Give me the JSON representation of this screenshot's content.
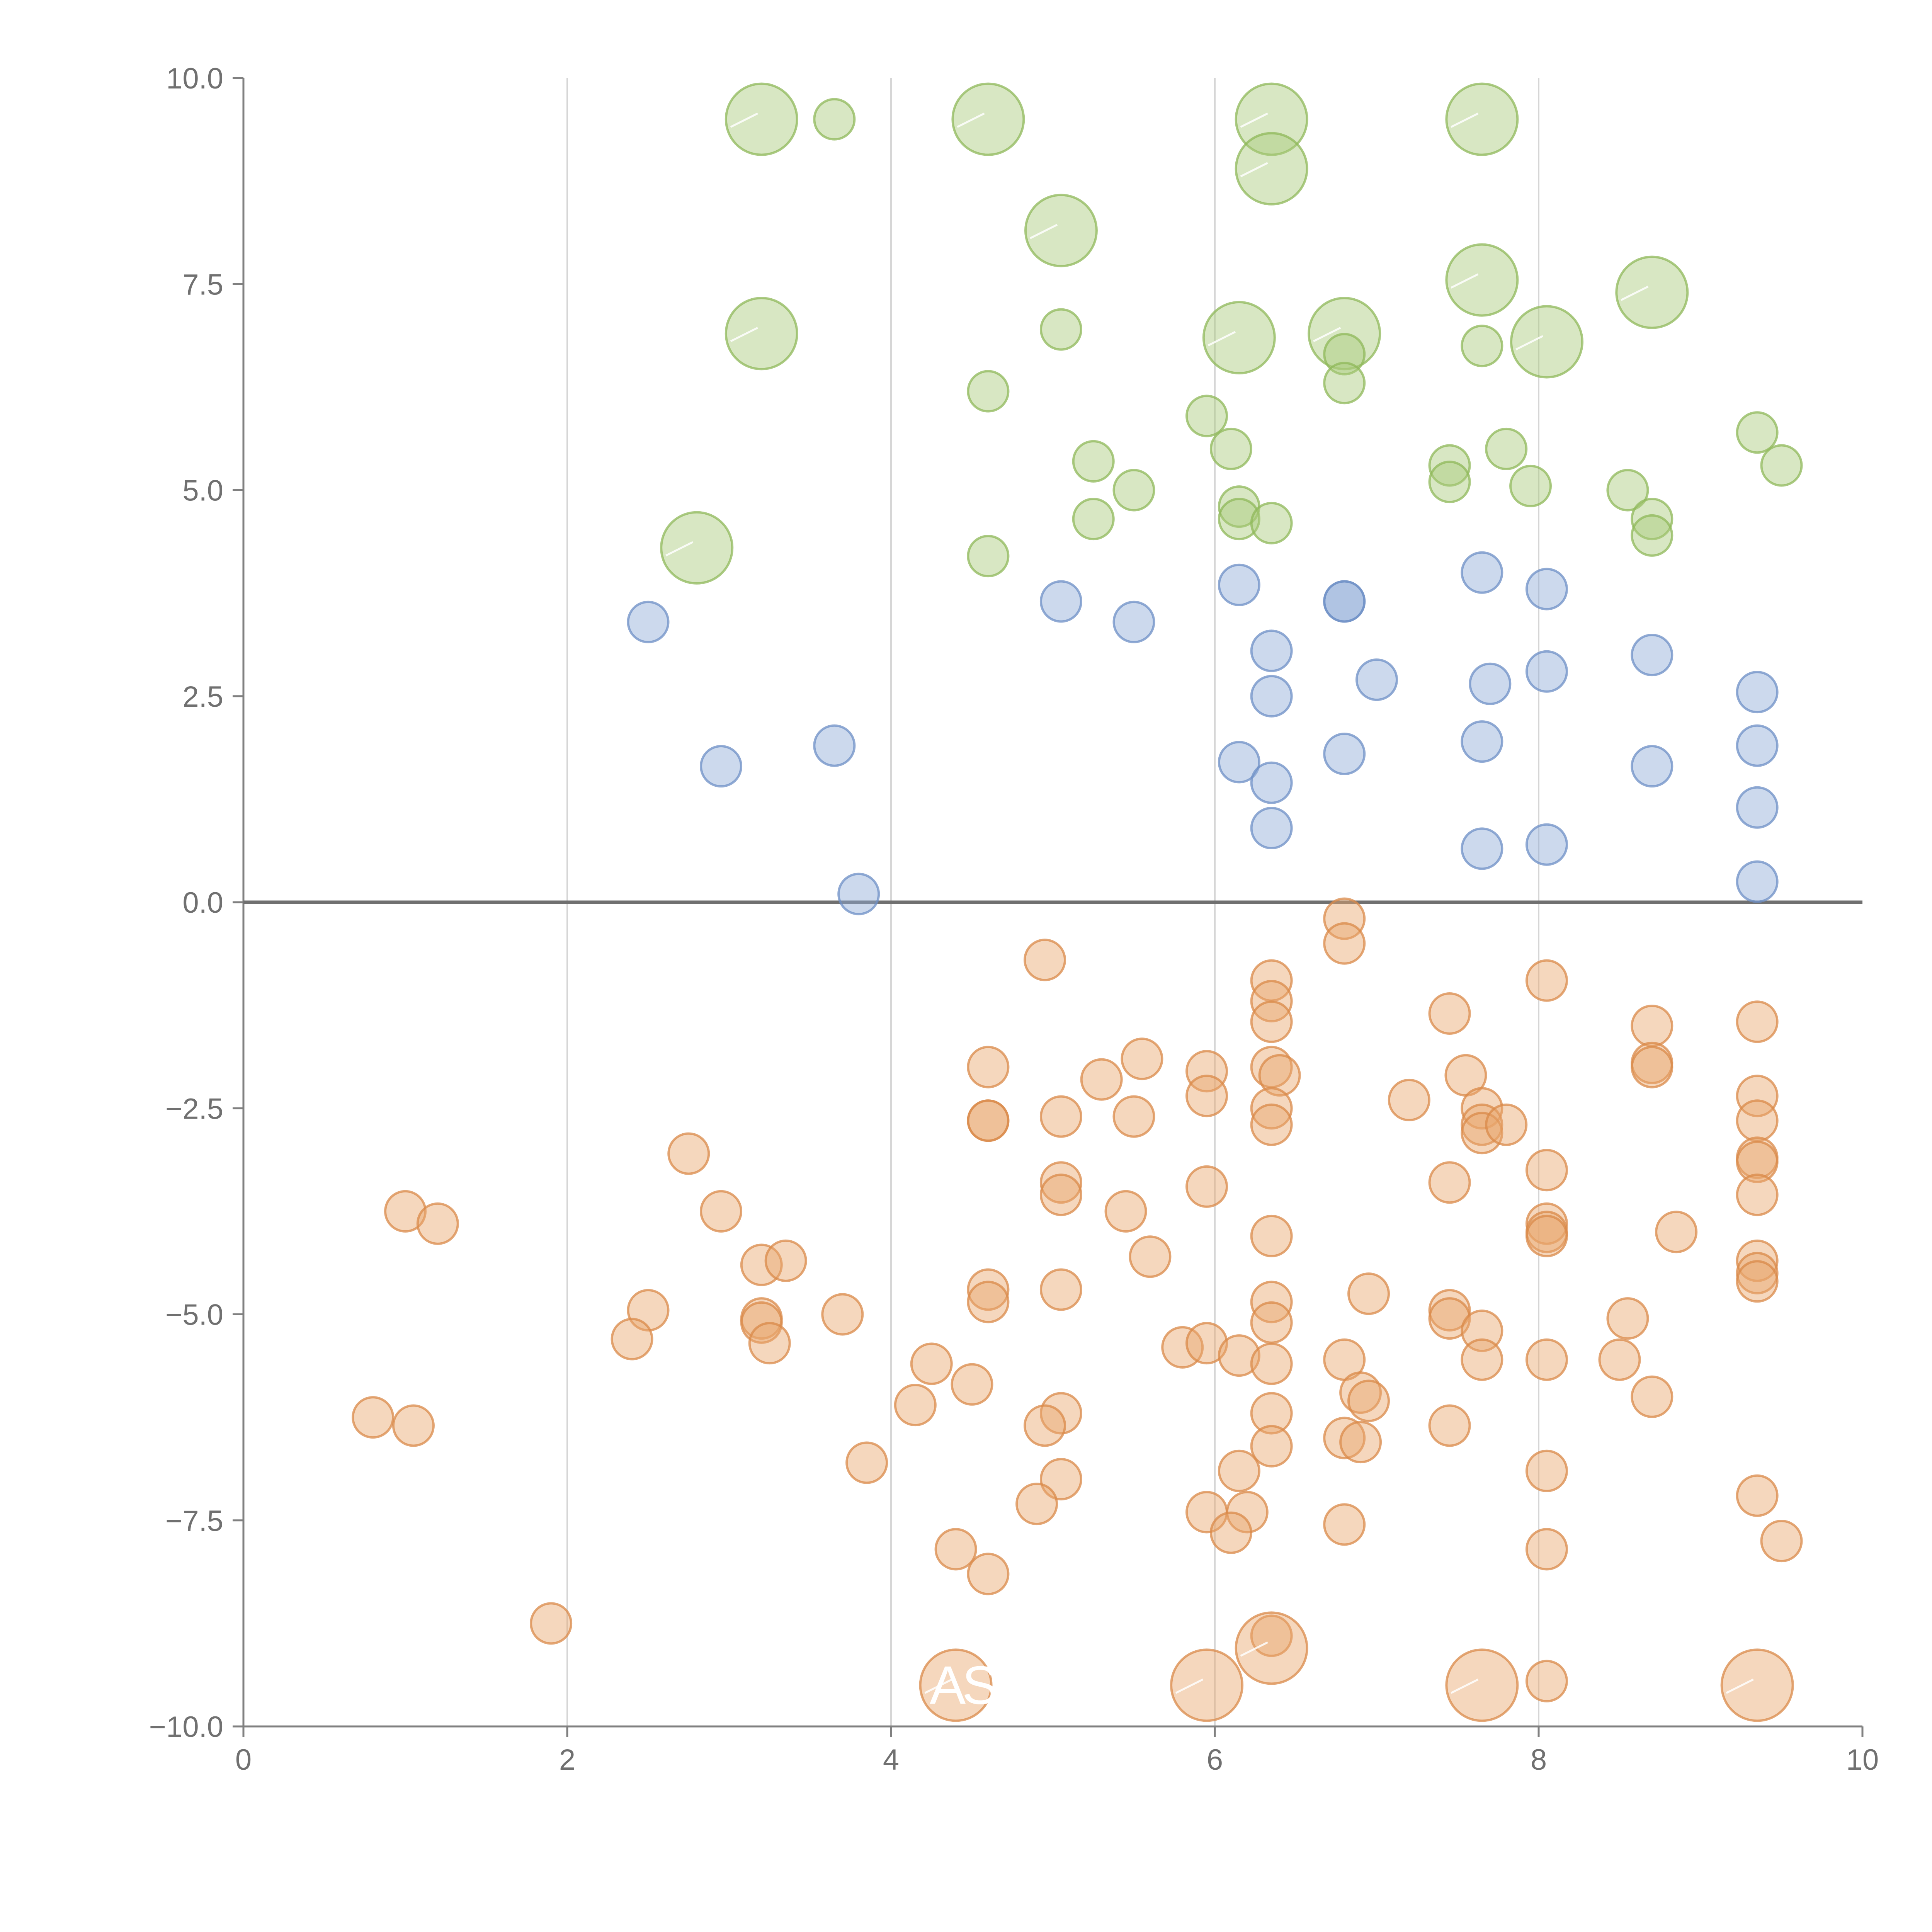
{
  "chart_data": {
    "type": "scatter",
    "title": "",
    "xlabel": "",
    "ylabel": "",
    "xlim": [
      0,
      10
    ],
    "ylim": [
      -10,
      10
    ],
    "xticks": [
      "0",
      "2",
      "4",
      "6",
      "8",
      "10"
    ],
    "yticks": [
      "10.0",
      "7.5",
      "5.0",
      "2.5",
      "0.0",
      "−2.5",
      "−5.0",
      "−7.5",
      "−10.0"
    ],
    "xtick_values": [
      0,
      2,
      4,
      6,
      8,
      10
    ],
    "ytick_values": [
      10,
      7.5,
      5,
      2.5,
      0,
      -2.5,
      -5,
      -7.5,
      -10
    ],
    "grid": "vertical",
    "zero_line": 0,
    "series": [
      {
        "name": "green",
        "color": "#a9c97a",
        "stroke": "#8fb85a",
        "points": [
          [
            3.2,
            9.5,
            2
          ],
          [
            3.65,
            9.5,
            1
          ],
          [
            4.6,
            9.5,
            2
          ],
          [
            6.35,
            9.5,
            2
          ],
          [
            7.65,
            9.5,
            2
          ],
          [
            6.35,
            8.9,
            2
          ],
          [
            5.05,
            8.15,
            2
          ],
          [
            7.65,
            7.55,
            2
          ],
          [
            8.7,
            7.4,
            2
          ],
          [
            3.2,
            6.9,
            2
          ],
          [
            5.05,
            6.95,
            1
          ],
          [
            6.15,
            6.85,
            2
          ],
          [
            6.8,
            6.9,
            2
          ],
          [
            8.05,
            6.8,
            2
          ],
          [
            7.65,
            6.75,
            1
          ],
          [
            6.8,
            6.65,
            1
          ],
          [
            6.8,
            6.3,
            1
          ],
          [
            4.6,
            6.2,
            1
          ],
          [
            5.95,
            5.9,
            1
          ],
          [
            6.1,
            5.5,
            1
          ],
          [
            5.25,
            5.35,
            1
          ],
          [
            7.45,
            5.3,
            1
          ],
          [
            7.8,
            5.5,
            1
          ],
          [
            9.35,
            5.7,
            1
          ],
          [
            9.5,
            5.3,
            1
          ],
          [
            7.45,
            5.1,
            1
          ],
          [
            7.95,
            5.05,
            1
          ],
          [
            8.55,
            5.0,
            1
          ],
          [
            5.5,
            5.0,
            1
          ],
          [
            6.15,
            4.8,
            1
          ],
          [
            6.15,
            4.65,
            1
          ],
          [
            6.35,
            4.6,
            1
          ],
          [
            5.25,
            4.65,
            1
          ],
          [
            8.7,
            4.65,
            1
          ],
          [
            8.7,
            4.45,
            1
          ],
          [
            2.8,
            4.3,
            2
          ],
          [
            4.6,
            4.2,
            1
          ]
        ]
      },
      {
        "name": "blue",
        "color": "#8eaad6",
        "stroke": "#6e8fc6",
        "points": [
          [
            2.5,
            3.4,
            1
          ],
          [
            5.05,
            3.65,
            1
          ],
          [
            5.5,
            3.4,
            1
          ],
          [
            6.15,
            3.85,
            1
          ],
          [
            6.8,
            3.65,
            1
          ],
          [
            6.8,
            3.65,
            1
          ],
          [
            7.65,
            4.0,
            1
          ],
          [
            8.05,
            3.8,
            1
          ],
          [
            6.35,
            3.05,
            1
          ],
          [
            7.0,
            2.7,
            1
          ],
          [
            6.35,
            2.5,
            1
          ],
          [
            7.7,
            2.65,
            1
          ],
          [
            8.05,
            2.8,
            1
          ],
          [
            8.7,
            3.0,
            1
          ],
          [
            9.35,
            2.55,
            1
          ],
          [
            2.95,
            1.65,
            1
          ],
          [
            3.65,
            1.9,
            1
          ],
          [
            6.15,
            1.7,
            1
          ],
          [
            6.35,
            1.45,
            1
          ],
          [
            6.8,
            1.8,
            1
          ],
          [
            7.65,
            1.95,
            1
          ],
          [
            8.7,
            1.65,
            1
          ],
          [
            9.35,
            1.9,
            1
          ],
          [
            9.35,
            1.15,
            1
          ],
          [
            6.35,
            0.9,
            1
          ],
          [
            7.65,
            0.65,
            1
          ],
          [
            8.05,
            0.7,
            1
          ],
          [
            9.35,
            0.25,
            1
          ],
          [
            3.8,
            0.1,
            1
          ]
        ]
      },
      {
        "name": "orange",
        "color": "#e8a66c",
        "stroke": "#d9894a",
        "points": [
          [
            6.8,
            -0.2,
            1
          ],
          [
            6.8,
            -0.5,
            1
          ],
          [
            4.95,
            -0.7,
            1
          ],
          [
            6.35,
            -0.95,
            1
          ],
          [
            8.05,
            -0.95,
            1
          ],
          [
            6.35,
            -1.2,
            1
          ],
          [
            6.35,
            -1.45,
            1
          ],
          [
            7.45,
            -1.35,
            1
          ],
          [
            8.7,
            -1.5,
            1
          ],
          [
            9.35,
            -1.45,
            1
          ],
          [
            5.55,
            -1.9,
            1
          ],
          [
            4.6,
            -2.0,
            1
          ],
          [
            5.95,
            -2.05,
            1
          ],
          [
            6.35,
            -2.0,
            1
          ],
          [
            6.4,
            -2.1,
            1
          ],
          [
            7.55,
            -2.1,
            1
          ],
          [
            8.7,
            -1.95,
            1
          ],
          [
            8.7,
            -2.0,
            1
          ],
          [
            5.3,
            -2.15,
            1
          ],
          [
            5.95,
            -2.35,
            1
          ],
          [
            7.2,
            -2.4,
            1
          ],
          [
            9.35,
            -2.35,
            1
          ],
          [
            6.35,
            -2.5,
            1
          ],
          [
            7.65,
            -2.5,
            1
          ],
          [
            4.6,
            -2.65,
            1
          ],
          [
            4.6,
            -2.65,
            1
          ],
          [
            5.05,
            -2.6,
            1
          ],
          [
            5.5,
            -2.6,
            1
          ],
          [
            6.35,
            -2.7,
            1
          ],
          [
            7.65,
            -2.7,
            1
          ],
          [
            7.65,
            -2.8,
            1
          ],
          [
            7.8,
            -2.7,
            1
          ],
          [
            9.35,
            -2.65,
            1
          ],
          [
            2.75,
            -3.05,
            1
          ],
          [
            9.35,
            -3.1,
            1
          ],
          [
            9.35,
            -3.15,
            1
          ],
          [
            8.05,
            -3.25,
            1
          ],
          [
            5.05,
            -3.4,
            1
          ],
          [
            5.05,
            -3.55,
            1
          ],
          [
            5.95,
            -3.45,
            1
          ],
          [
            7.45,
            -3.4,
            1
          ],
          [
            9.35,
            -3.55,
            1
          ],
          [
            1.0,
            -3.75,
            1
          ],
          [
            2.95,
            -3.75,
            1
          ],
          [
            5.45,
            -3.75,
            1
          ],
          [
            1.2,
            -3.9,
            1
          ],
          [
            8.05,
            -3.9,
            1
          ],
          [
            8.05,
            -4.0,
            1
          ],
          [
            8.05,
            -4.05,
            1
          ],
          [
            6.35,
            -4.05,
            1
          ],
          [
            8.85,
            -4.0,
            1
          ],
          [
            3.2,
            -4.4,
            1
          ],
          [
            3.35,
            -4.35,
            1
          ],
          [
            5.6,
            -4.3,
            1
          ],
          [
            9.35,
            -4.35,
            1
          ],
          [
            9.35,
            -4.5,
            1
          ],
          [
            9.35,
            -4.6,
            1
          ],
          [
            4.6,
            -4.7,
            1
          ],
          [
            5.05,
            -4.7,
            1
          ],
          [
            6.95,
            -4.75,
            1
          ],
          [
            4.6,
            -4.85,
            1
          ],
          [
            6.35,
            -4.85,
            1
          ],
          [
            7.45,
            -4.95,
            1
          ],
          [
            2.5,
            -4.95,
            1
          ],
          [
            3.7,
            -5.0,
            1
          ],
          [
            7.45,
            -5.05,
            1
          ],
          [
            3.2,
            -5.05,
            1
          ],
          [
            3.2,
            -5.1,
            1
          ],
          [
            6.35,
            -5.1,
            1
          ],
          [
            8.55,
            -5.05,
            1
          ],
          [
            7.65,
            -5.2,
            1
          ],
          [
            2.4,
            -5.3,
            1
          ],
          [
            3.25,
            -5.35,
            1
          ],
          [
            5.8,
            -5.4,
            1
          ],
          [
            5.95,
            -5.35,
            1
          ],
          [
            6.15,
            -5.5,
            1
          ],
          [
            6.8,
            -5.55,
            1
          ],
          [
            7.65,
            -5.55,
            1
          ],
          [
            8.05,
            -5.55,
            1
          ],
          [
            8.5,
            -5.55,
            1
          ],
          [
            4.25,
            -5.6,
            1
          ],
          [
            6.35,
            -5.6,
            1
          ],
          [
            4.5,
            -5.85,
            1
          ],
          [
            6.9,
            -5.95,
            1
          ],
          [
            6.95,
            -6.05,
            1
          ],
          [
            8.7,
            -6.0,
            1
          ],
          [
            4.15,
            -6.1,
            1
          ],
          [
            5.05,
            -6.2,
            1
          ],
          [
            6.35,
            -6.2,
            1
          ],
          [
            0.8,
            -6.25,
            1
          ],
          [
            1.05,
            -6.35,
            1
          ],
          [
            4.95,
            -6.35,
            1
          ],
          [
            7.45,
            -6.35,
            1
          ],
          [
            6.8,
            -6.5,
            1
          ],
          [
            6.9,
            -6.55,
            1
          ],
          [
            6.35,
            -6.6,
            1
          ],
          [
            3.85,
            -6.8,
            1
          ],
          [
            6.15,
            -6.9,
            1
          ],
          [
            8.05,
            -6.9,
            1
          ],
          [
            5.05,
            -7.0,
            1
          ],
          [
            9.35,
            -7.2,
            1
          ],
          [
            4.9,
            -7.3,
            1
          ],
          [
            5.95,
            -7.4,
            1
          ],
          [
            6.2,
            -7.4,
            1
          ],
          [
            6.8,
            -7.55,
            1
          ],
          [
            6.1,
            -7.65,
            1
          ],
          [
            9.5,
            -7.75,
            1
          ],
          [
            4.4,
            -7.85,
            1
          ],
          [
            8.05,
            -7.85,
            1
          ],
          [
            4.6,
            -8.15,
            1
          ],
          [
            1.9,
            -8.75,
            1
          ],
          [
            6.35,
            -8.9,
            1
          ],
          [
            6.35,
            -9.05,
            2
          ],
          [
            4.4,
            -9.5,
            2
          ],
          [
            5.95,
            -9.5,
            2
          ],
          [
            7.65,
            -9.5,
            2
          ],
          [
            9.35,
            -9.5,
            2
          ],
          [
            8.05,
            -9.45,
            1
          ]
        ]
      }
    ],
    "annotations": [
      {
        "text": "A",
        "x": 4.35,
        "y": -9.5
      },
      {
        "text": "S",
        "x": 4.55,
        "y": -9.5
      }
    ]
  }
}
